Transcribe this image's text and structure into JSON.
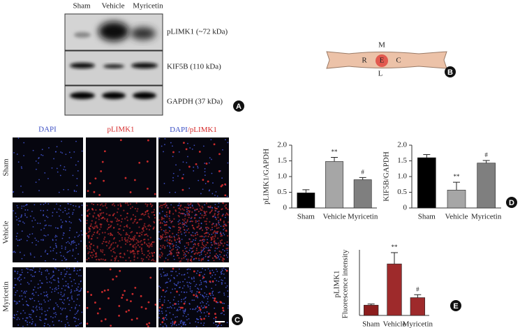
{
  "panel_labels": [
    "A",
    "B",
    "C",
    "D",
    "E"
  ],
  "blot": {
    "lanes": [
      "Sham",
      "Vehicle",
      "Myricetin"
    ],
    "rows": [
      "pLIMK1 (~72 kDa)",
      "KIF5B (110 kDa)",
      "GAPDH (37 kDa)"
    ]
  },
  "diagram": {
    "top": "M",
    "left": "R",
    "center": "E",
    "right": "C",
    "bottom": "L"
  },
  "images": {
    "columns": [
      [
        "DAPI"
      ],
      [
        "pLIMK1"
      ],
      [
        "DAPI",
        "/pLIMK1"
      ]
    ],
    "rows": [
      "Sham",
      "Vehicle",
      "Myricetin"
    ]
  },
  "chart_data": [
    {
      "type": "bar",
      "ylabel": "pLIMK1/GAPDH",
      "categories": [
        "Sham",
        "Vehicle",
        "Myricetin"
      ],
      "values": [
        0.48,
        1.48,
        0.9
      ],
      "errors": [
        0.1,
        0.13,
        0.07
      ],
      "annotations": [
        null,
        "**",
        "#"
      ],
      "colors": [
        "#000000",
        "#a6a6a6",
        "#7f7f7f"
      ],
      "ylim": [
        0,
        2
      ],
      "yticks": [
        0,
        0.5,
        {
          "value": 1,
          "label": "1.0"
        },
        {
          "value": 1.5,
          "label": "1.5"
        },
        {
          "value": 2,
          "label": "2.0"
        }
      ]
    },
    {
      "type": "bar",
      "ylabel": "KIF5B/GAPDH",
      "categories": [
        "Sham",
        "Vehicle",
        "Myricetin"
      ],
      "values": [
        1.6,
        0.57,
        1.43
      ],
      "errors": [
        0.1,
        0.25,
        0.08
      ],
      "annotations": [
        null,
        "**",
        "#"
      ],
      "colors": [
        "#000000",
        "#a6a6a6",
        "#7f7f7f"
      ],
      "ylim": [
        0,
        2
      ],
      "yticks": [
        0,
        0.5,
        {
          "value": 1,
          "label": "1.0"
        },
        {
          "value": 1.5,
          "label": "1.5"
        },
        {
          "value": 2,
          "label": "2.0"
        }
      ]
    },
    {
      "type": "bar",
      "ylabel": [
        "pLIMK1",
        "Fluorescence intensity"
      ],
      "categories": [
        "Sham",
        "Vehicle",
        "Myricetin"
      ],
      "values": [
        5.5,
        27.5,
        9.5
      ],
      "errors": [
        0.6,
        6,
        1.6
      ],
      "annotations": [
        null,
        "**",
        "#"
      ],
      "colors": [
        "#8c1d1d",
        "#9e2a2b",
        "#9e2a2b"
      ],
      "ylim": [
        0,
        35
      ],
      "yticks": []
    }
  ]
}
